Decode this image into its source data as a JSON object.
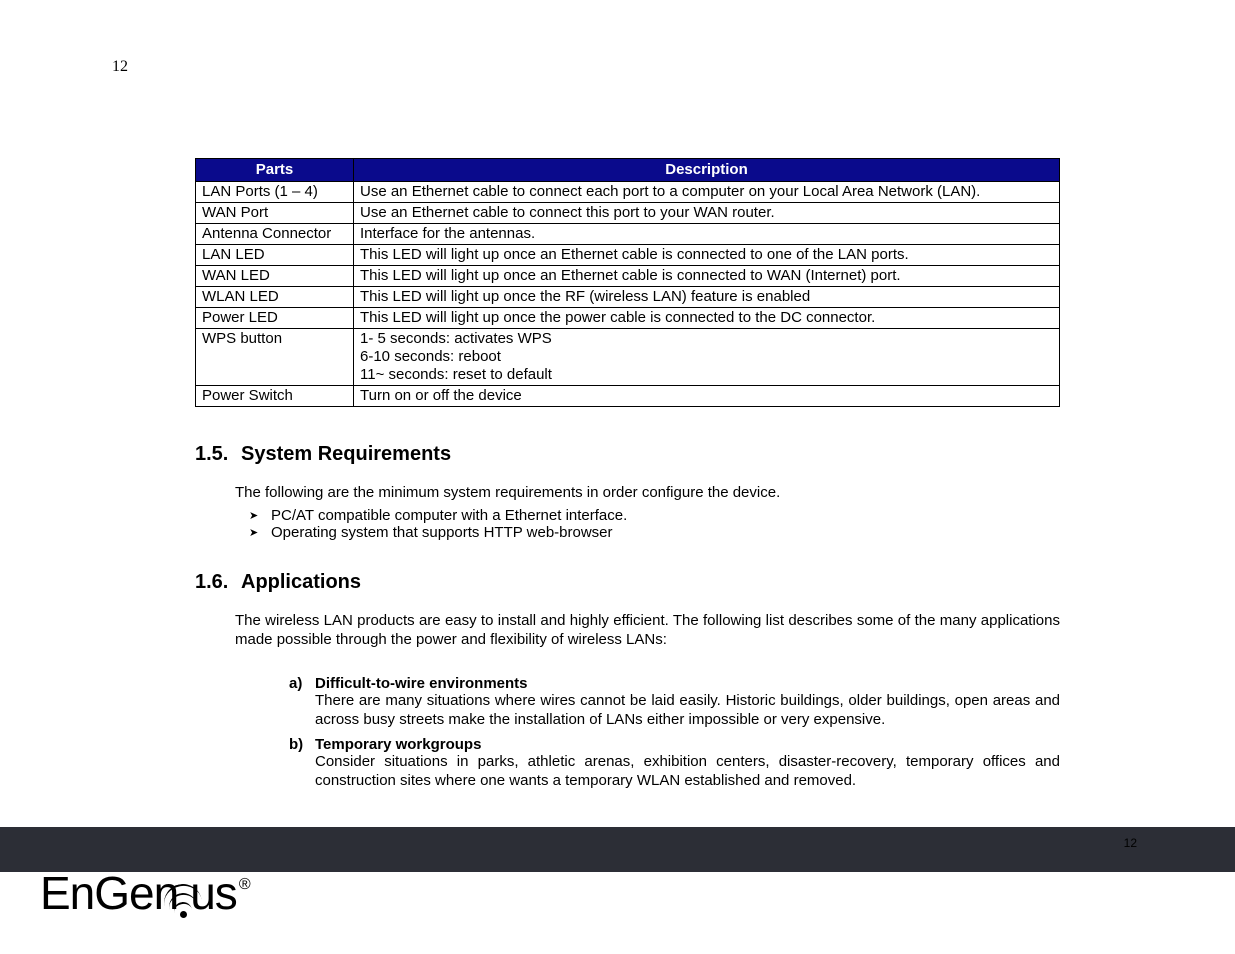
{
  "page_number_top": "12",
  "table": {
    "header_bg": "#0a0a8c",
    "header_color": "#ffffff",
    "columns": [
      "Parts",
      "Description"
    ],
    "rows": [
      {
        "part": "LAN Ports (1 – 4)",
        "desc": "Use an Ethernet cable to connect each port to a computer on your Local Area Network (LAN)."
      },
      {
        "part": "WAN Port",
        "desc": "Use an Ethernet cable to connect this port to your WAN router."
      },
      {
        "part": "Antenna Connector",
        "desc": "Interface for the antennas.",
        "tall": true
      },
      {
        "part": "LAN LED",
        "desc": "This LED will light up once an Ethernet cable is connected to one of the LAN ports."
      },
      {
        "part": "WAN LED",
        "desc": "This LED will light up once an Ethernet cable is connected to WAN (Internet) port."
      },
      {
        "part": "WLAN LED",
        "desc": "This LED will light up once the RF (wireless LAN) feature is enabled"
      },
      {
        "part": "Power LED",
        "desc": "This LED will light up once the power cable is connected to the DC connector."
      },
      {
        "part": "WPS button",
        "desc": "1- 5  seconds: activates WPS\n6-10 seconds: reboot\n11~  seconds: reset to default"
      },
      {
        "part": "Power Switch",
        "desc": "Turn on or off the device",
        "tall": true
      }
    ]
  },
  "section_1_5": {
    "number": "1.5.",
    "title": "System Requirements",
    "intro": "The following are the minimum system requirements in order configure the device.",
    "bullets": [
      "PC/AT compatible computer with a Ethernet interface.",
      "Operating system that supports HTTP web-browser"
    ]
  },
  "section_1_6": {
    "number": "1.6.",
    "title": "Applications",
    "intro": "The wireless LAN products are easy to install and highly efficient. The following list describes some of the many applications made possible through the power and flexibility of wireless LANs:",
    "items": [
      {
        "marker": "a)",
        "title": "Difficult-to-wire environments",
        "desc": "There are many situations where wires cannot be laid easily. Historic buildings, older buildings, open areas and across busy streets make the installation of LANs either impossible or very expensive."
      },
      {
        "marker": "b)",
        "title": "Temporary workgroups",
        "desc": "Consider situations in parks, athletic arenas, exhibition centers, disaster-recovery, temporary offices and construction sites where one wants a temporary WLAN established and removed."
      }
    ]
  },
  "footer": {
    "page_number": "12",
    "logo_text_1": "EnGen",
    "logo_text_2": "us",
    "registered": "®"
  }
}
